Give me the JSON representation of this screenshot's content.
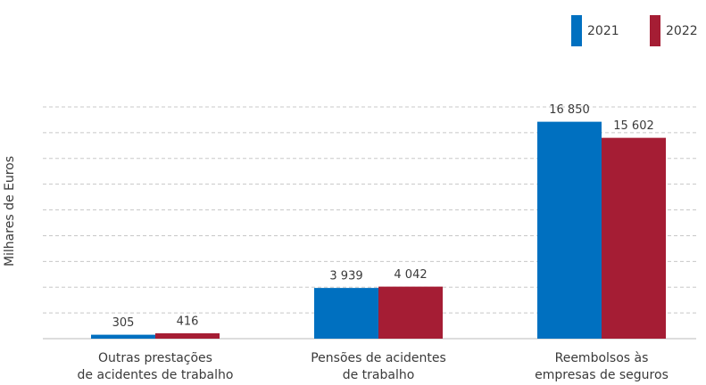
{
  "chart_data": {
    "type": "bar",
    "y_label": "Milhares de Euros",
    "categories": [
      [
        "Outras prestações",
        "de acidentes de trabalho"
      ],
      [
        "Pensões de acidentes",
        "de trabalho"
      ],
      [
        "Reembolsos às",
        "empresas de seguros"
      ]
    ],
    "series": [
      {
        "name": "2021",
        "color": "#0070c0",
        "values": [
          305,
          3939,
          16850
        ],
        "value_labels": [
          "305",
          "3 939",
          "16 850"
        ]
      },
      {
        "name": "2022",
        "color": "#a51d34",
        "values": [
          416,
          4042,
          15602
        ],
        "value_labels": [
          "416",
          "4 042",
          "15 602"
        ]
      }
    ],
    "ylim": [
      0,
      18000
    ],
    "yticks": [
      0,
      2000,
      4000,
      6000,
      8000,
      10000,
      12000,
      14000,
      16000,
      18000
    ],
    "grid": true,
    "legend": "top-right"
  }
}
